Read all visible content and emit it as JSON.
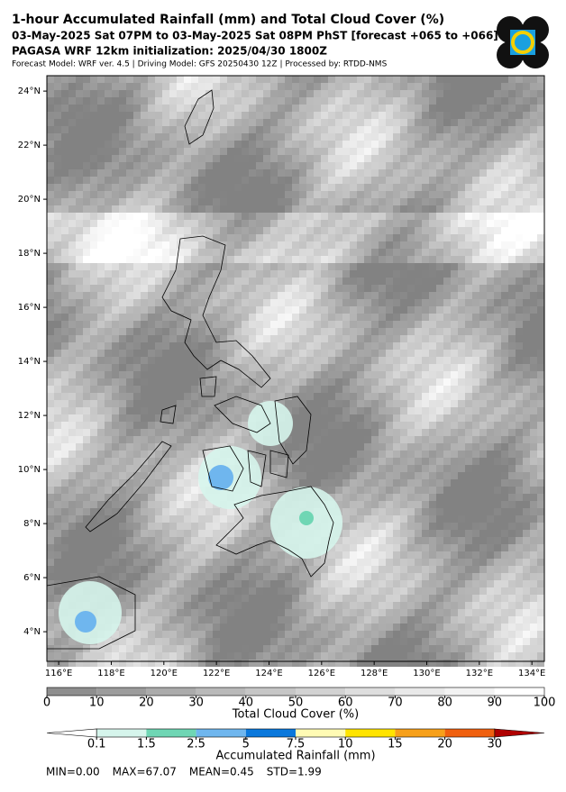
{
  "header": {
    "title": "1-hour Accumulated Rainfall (mm) and Total Cloud Cover (%)",
    "period": "03-May-2025 Sat 07PM to 03-May-2025 Sat 08PM PhST [forecast +065 to +066]",
    "init": "PAGASA WRF 12km initialization: 2025/04/30 1800Z",
    "credits": "Forecast Model: WRF ver. 4.5 | Driving Model: GFS 20250430 12Z | Processed by: RTDD-NMS"
  },
  "map": {
    "lat_ticks": [
      {
        "value": 4,
        "label": "4°N"
      },
      {
        "value": 6,
        "label": "6°N"
      },
      {
        "value": 8,
        "label": "8°N"
      },
      {
        "value": 10,
        "label": "10°N"
      },
      {
        "value": 12,
        "label": "12°N"
      },
      {
        "value": 14,
        "label": "14°N"
      },
      {
        "value": 16,
        "label": "16°N"
      },
      {
        "value": 18,
        "label": "18°N"
      },
      {
        "value": 20,
        "label": "20°N"
      },
      {
        "value": 22,
        "label": "22°N"
      },
      {
        "value": 24,
        "label": "24°N"
      }
    ],
    "lon_ticks": [
      {
        "value": 116,
        "label": "116°E"
      },
      {
        "value": 118,
        "label": "118°E"
      },
      {
        "value": 120,
        "label": "120°E"
      },
      {
        "value": 122,
        "label": "122°E"
      },
      {
        "value": 124,
        "label": "124°E"
      },
      {
        "value": 126,
        "label": "126°E"
      },
      {
        "value": 128,
        "label": "128°E"
      },
      {
        "value": 130,
        "label": "130°E"
      },
      {
        "value": 132,
        "label": "132°E"
      },
      {
        "value": 134,
        "label": "134°E"
      }
    ]
  },
  "cloud_colorbar": {
    "label": "Total Cloud Cover (%)",
    "ticks": [
      0,
      10,
      20,
      30,
      40,
      50,
      60,
      70,
      80,
      90,
      100
    ],
    "colors": [
      "#8e8e8e",
      "#9c9c9c",
      "#ababab",
      "#b9b9b9",
      "#c6c6c6",
      "#d2d2d2",
      "#dedede",
      "#e9e9e9",
      "#f3f3f3",
      "#ffffff"
    ]
  },
  "rain_colorbar": {
    "label": "Accumulated Rainfall (mm)",
    "ticks": [
      0.1,
      1.5,
      2.5,
      5,
      7.5,
      10,
      15,
      20,
      30
    ],
    "colors": [
      "#d6f5ec",
      "#6fd6b4",
      "#6fb6ee",
      "#0a78dc",
      "#fffbb4",
      "#ffe400",
      "#f7a01a",
      "#f0600f"
    ],
    "under_color": "#ffffff",
    "over_color": "#b00000"
  },
  "stats": [
    "MIN=0.00",
    "MAX=67.07",
    "MEAN=0.45",
    "STD=1.99"
  ]
}
